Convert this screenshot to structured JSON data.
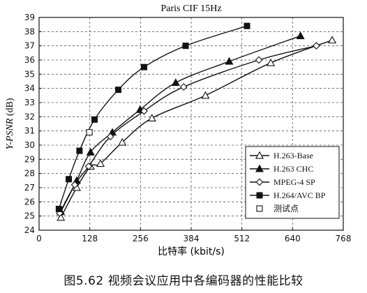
{
  "chart_data": {
    "type": "line",
    "title": "Paris CIF 15Hz",
    "xlabel": "比特率 (kbit/s)",
    "ylabel_italic": "Y-PSNR",
    "ylabel_unit": " (dB)",
    "xlim": [
      0,
      768
    ],
    "ylim": [
      24,
      39
    ],
    "xticks": [
      0,
      128,
      256,
      384,
      512,
      640,
      768
    ],
    "yticks": [
      24,
      25,
      26,
      27,
      28,
      29,
      30,
      31,
      32,
      33,
      34,
      35,
      36,
      37,
      38,
      39
    ],
    "grid": "dashed",
    "legend_position": "bottom-right",
    "series": [
      {
        "name": "H.263-Base",
        "marker": "triangle-open",
        "points": [
          [
            55,
            24.9
          ],
          [
            95,
            27.0
          ],
          [
            130,
            28.5
          ],
          [
            155,
            28.7
          ],
          [
            210,
            30.2
          ],
          [
            285,
            31.9
          ],
          [
            420,
            33.5
          ],
          [
            585,
            35.8
          ],
          [
            740,
            37.4
          ]
        ]
      },
      {
        "name": "H.263  CHC",
        "marker": "triangle-filled",
        "points": [
          [
            55,
            25.3
          ],
          [
            95,
            27.5
          ],
          [
            130,
            29.5
          ],
          [
            185,
            30.9
          ],
          [
            255,
            32.5
          ],
          [
            345,
            34.4
          ],
          [
            480,
            35.9
          ],
          [
            660,
            37.7
          ]
        ]
      },
      {
        "name": "MPEG-4 SP",
        "marker": "diamond-open",
        "points": [
          [
            52,
            25.2
          ],
          [
            90,
            27.2
          ],
          [
            125,
            28.5
          ],
          [
            180,
            30.6
          ],
          [
            265,
            32.4
          ],
          [
            365,
            34.1
          ],
          [
            555,
            36.0
          ],
          [
            700,
            37.0
          ]
        ]
      },
      {
        "name": "H.264/AVC BP",
        "marker": "square-filled",
        "points": [
          [
            50,
            25.5
          ],
          [
            75,
            27.6
          ],
          [
            102,
            29.6
          ],
          [
            140,
            31.8
          ],
          [
            200,
            33.9
          ],
          [
            265,
            35.5
          ],
          [
            370,
            37.0
          ],
          [
            525,
            38.4
          ]
        ]
      }
    ],
    "test_points": {
      "name": "测试点",
      "marker": "square-open",
      "points": [
        [
          127,
          30.9
        ]
      ]
    }
  },
  "caption": "图5.62   视频会议应用中各编码器的性能比较"
}
